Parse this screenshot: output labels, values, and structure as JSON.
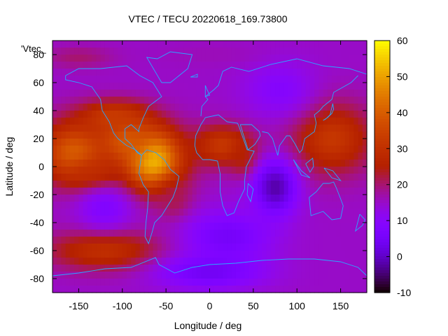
{
  "chart_data": {
    "type": "heatmap",
    "title": "VTEC / TECU 20220618_169.73800",
    "xlabel": "Longitude / deg",
    "ylabel": "Latitude / deg",
    "series_label": "'Vtec_",
    "xlim": [
      -180,
      180
    ],
    "ylim": [
      -90,
      90
    ],
    "x_ticks": [
      -150,
      -100,
      -50,
      0,
      50,
      100,
      150
    ],
    "y_ticks": [
      -80,
      -60,
      -40,
      -20,
      0,
      20,
      40,
      60,
      80
    ],
    "colorbar": {
      "range": [
        -10,
        60
      ],
      "ticks": [
        -10,
        0,
        10,
        20,
        30,
        40,
        50,
        60
      ]
    },
    "grid": false,
    "background_value": 15,
    "colors": {
      "coastline": "#2aa8ff",
      "palette": [
        "#000000",
        "#3a005a",
        "#5b00c8",
        "#8a1fe0",
        "#c4206a",
        "#e03a00",
        "#f08a00",
        "#f8d000",
        "#ffff60"
      ]
    },
    "features": [
      {
        "lon": -65,
        "lat": 5,
        "rlon": 35,
        "rlat": 22,
        "value": 54
      },
      {
        "lon": -95,
        "lat": 20,
        "rlon": 30,
        "rlat": 16,
        "value": 40
      },
      {
        "lon": -155,
        "lat": 10,
        "rlon": 40,
        "rlat": 22,
        "value": 40
      },
      {
        "lon": -135,
        "lat": -5,
        "rlon": 28,
        "rlat": 10,
        "value": 30
      },
      {
        "lon": -110,
        "lat": 35,
        "rlon": 40,
        "rlat": 12,
        "value": 33
      },
      {
        "lon": 15,
        "lat": 15,
        "rlon": 35,
        "rlat": 15,
        "value": 32
      },
      {
        "lon": 40,
        "lat": 5,
        "rlon": 15,
        "rlat": 12,
        "value": 26
      },
      {
        "lon": 140,
        "lat": 20,
        "rlon": 45,
        "rlat": 25,
        "value": 32
      },
      {
        "lon": -120,
        "lat": -60,
        "rlon": 65,
        "rlat": 14,
        "value": 30
      },
      {
        "lon": -40,
        "lat": -25,
        "rlon": 20,
        "rlat": 15,
        "value": 22
      },
      {
        "lon": -120,
        "lat": -30,
        "rlon": 30,
        "rlat": 15,
        "value": 8
      },
      {
        "lon": 75,
        "lat": -15,
        "rlon": 25,
        "rlat": 20,
        "value": -2
      },
      {
        "lon": 20,
        "lat": -50,
        "rlon": 50,
        "rlat": 18,
        "value": 5
      },
      {
        "lon": 0,
        "lat": -75,
        "rlon": 60,
        "rlat": 12,
        "value": 4
      },
      {
        "lon": 80,
        "lat": 55,
        "rlon": 40,
        "rlat": 20,
        "value": 9
      },
      {
        "lon": -150,
        "lat": 78,
        "rlon": 40,
        "rlat": 8,
        "value": 20
      },
      {
        "lon": 0,
        "lat": 80,
        "rlon": 60,
        "rlat": 8,
        "value": 16
      }
    ]
  }
}
